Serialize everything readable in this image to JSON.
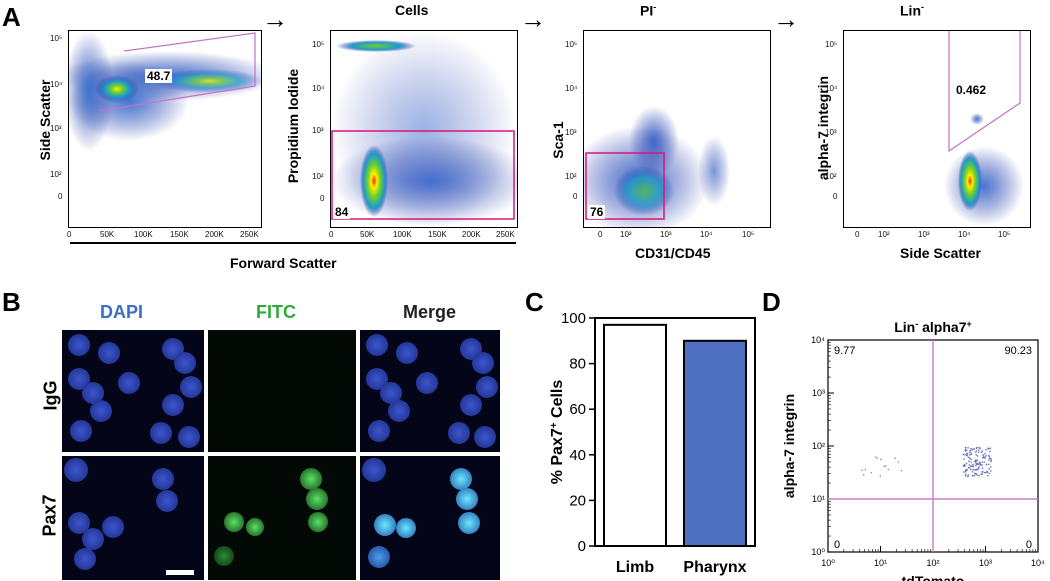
{
  "panels": {
    "a": "A",
    "b": "B",
    "c": "C",
    "d": "D"
  },
  "panel_a": {
    "arrows": [
      "→",
      "→",
      "→"
    ],
    "plot1": {
      "gate_value": "48.7",
      "ylabel": "Side Scatter",
      "yticks": [
        "10⁵",
        "10⁴",
        "10³",
        "10²",
        "0"
      ],
      "xticks": [
        "0",
        "50K",
        "100K",
        "150K",
        "200K",
        "250K"
      ]
    },
    "plot2": {
      "title": "Cells",
      "gate_value": "84",
      "ylabel": "Propidium Iodide",
      "yticks": [
        "10⁵",
        "10⁴",
        "10³",
        "10²",
        "0"
      ],
      "xticks": [
        "0",
        "50K",
        "100K",
        "150K",
        "200K",
        "250K"
      ]
    },
    "shared_xlabel": "Forward Scatter",
    "plot3": {
      "title": "PI",
      "title_sup": "-",
      "gate_value": "76",
      "ylabel": "Sca-1",
      "xlabel": "CD31/CD45",
      "yticks": [
        "10⁵",
        "10⁴",
        "10³",
        "10²",
        "0"
      ],
      "xticks": [
        "0",
        "10²",
        "10³",
        "10⁴",
        "10⁵"
      ]
    },
    "plot4": {
      "title": "Lin",
      "title_sup": "-",
      "gate_value": "0.462",
      "ylabel": "alpha-7 integrin",
      "xlabel": "Side Scatter",
      "yticks": [
        "10⁵",
        "10⁴",
        "10³",
        "10²",
        "0"
      ],
      "xticks": [
        "0",
        "10²",
        "10³",
        "10⁴",
        "10⁵"
      ]
    }
  },
  "panel_b": {
    "columns": [
      "DAPI",
      "FITC",
      "Merge"
    ],
    "rows": [
      "IgG",
      "Pax7"
    ],
    "colors": {
      "DAPI": "#3a6fc4",
      "FITC": "#2eaa3c",
      "Merge": "#222222"
    }
  },
  "chart_data": [
    {
      "type": "bar",
      "title": "",
      "ylabel": "% Pax7+ Cells",
      "ylabel_main": "% Pax7",
      "ylabel_sup": "+",
      "ylabel_tail": " Cells",
      "categories": [
        "Limb",
        "Pharynx"
      ],
      "values": [
        97,
        90
      ],
      "bar_colors": [
        "#ffffff",
        "#4f6fc0"
      ],
      "ylim": [
        0,
        100
      ],
      "yticks": [
        "0",
        "20",
        "40",
        "60",
        "80",
        "100"
      ]
    },
    {
      "type": "scatter",
      "title": "Lin- alpha7+",
      "title_main": "Lin",
      "title_sup1": "-",
      "title_mid": " alpha7",
      "title_sup2": "+",
      "xlabel": "tdTomato",
      "ylabel": "alpha-7 integrin",
      "xscale": "log",
      "yscale": "log",
      "xlim": [
        1,
        10000
      ],
      "ylim": [
        1,
        10000
      ],
      "xticks": [
        "10⁰",
        "10¹",
        "10²",
        "10³",
        "10⁴"
      ],
      "yticks": [
        "10⁰",
        "10¹",
        "10²",
        "10³",
        "10⁴"
      ],
      "quadrant_threshold": {
        "x": 100,
        "y": 10
      },
      "quadrant_values": {
        "upper_left": "9.77",
        "upper_right": "90.23",
        "lower_left": "0",
        "lower_right": "0"
      }
    }
  ]
}
